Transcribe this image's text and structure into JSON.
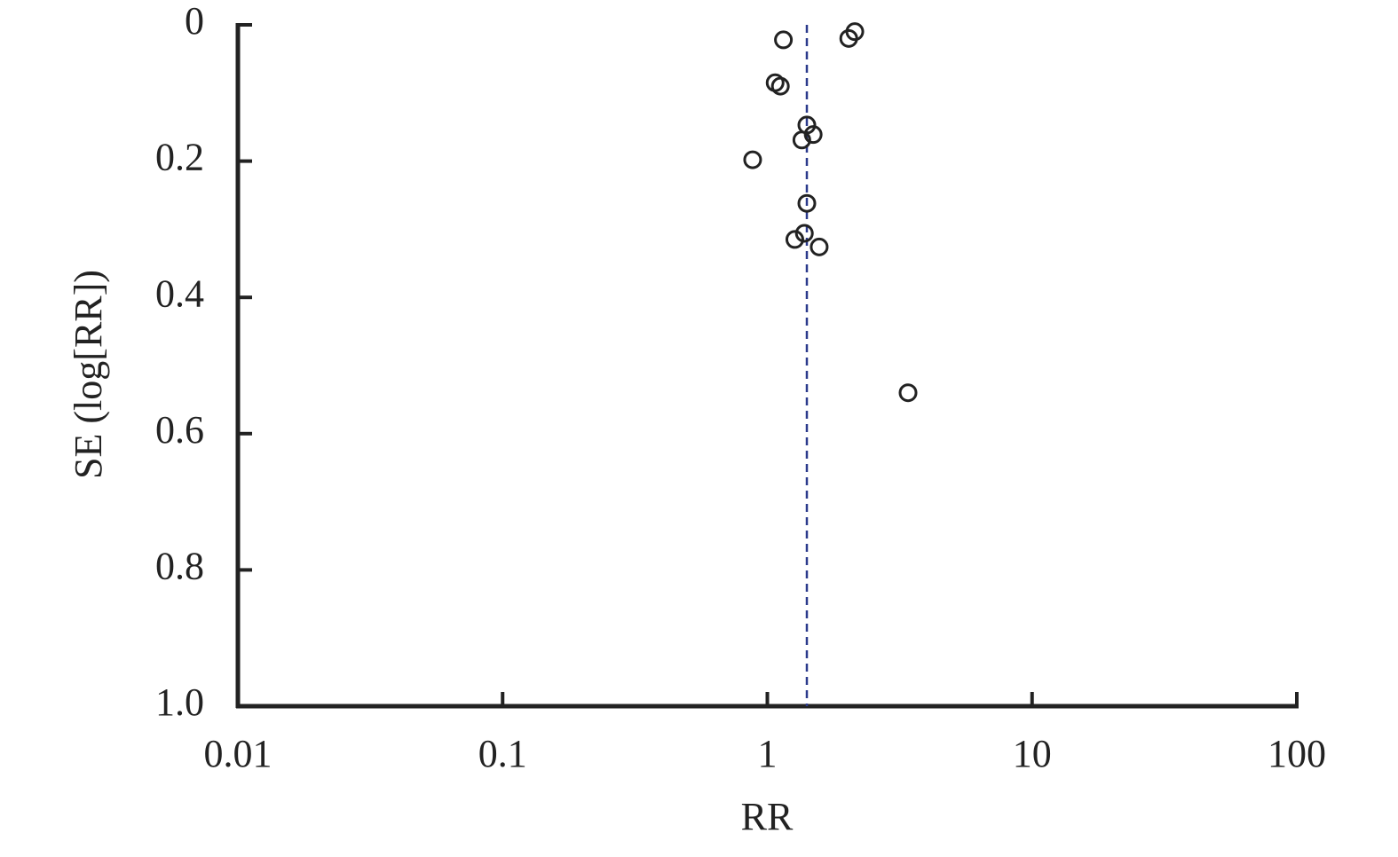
{
  "chart_data": {
    "type": "scatter",
    "x_label": "RR",
    "y_label": "SE (log[RR])",
    "x_log": true,
    "y_inverted": true,
    "xlim": [
      0.01,
      100
    ],
    "xticks": [
      0.01,
      0.1,
      1,
      10,
      100
    ],
    "ylim": [
      0,
      1
    ],
    "yticks": [
      0,
      0.2,
      0.4,
      0.6,
      0.8,
      {
        "value": 1,
        "label": "1.0"
      }
    ],
    "reference_line": {
      "x": 1.41,
      "color": "#2b3a8c",
      "dashed": true
    },
    "marker_color": "#222222",
    "x": [
      2.14,
      2.03,
      1.15,
      1.07,
      1.12,
      1.41,
      1.49,
      1.35,
      0.88,
      1.41,
      1.38,
      1.27,
      1.57,
      3.4
    ],
    "y": [
      0.01,
      0.02,
      0.022,
      0.085,
      0.09,
      0.147,
      0.161,
      0.169,
      0.198,
      0.262,
      0.306,
      0.315,
      0.326,
      0.54
    ]
  }
}
